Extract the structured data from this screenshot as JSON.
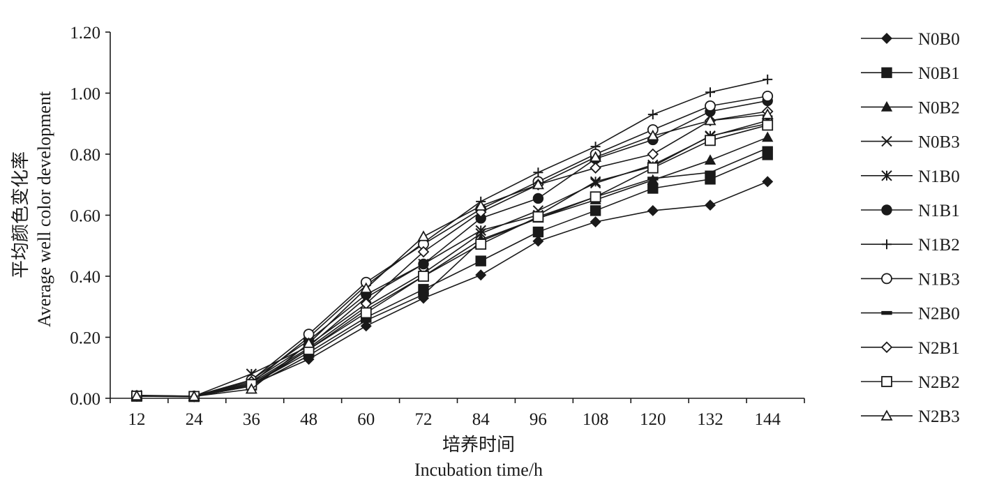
{
  "chart_data": {
    "type": "line",
    "xlabel_zh": "培养时间",
    "xlabel_en": "Incubation time/h",
    "ylabel_zh": "平均颜色变化率",
    "ylabel_en": "Average well color development",
    "x": [
      12,
      24,
      36,
      48,
      60,
      72,
      84,
      96,
      108,
      120,
      132,
      144
    ],
    "x_tick_labels": [
      "12",
      "24",
      "36",
      "48",
      "60",
      "72",
      "84",
      "96",
      "108",
      "120",
      "132",
      "144"
    ],
    "y_tick_labels": [
      "0.00",
      "0.20",
      "0.40",
      "0.60",
      "0.80",
      "1.00",
      "1.20"
    ],
    "y_ticks": [
      0,
      0.2,
      0.4,
      0.6,
      0.8,
      1.0,
      1.2
    ],
    "ylim": [
      0,
      1.2
    ],
    "grid": false,
    "legend_position": "right",
    "series": [
      {
        "name": "N0B0",
        "marker": "diamond-filled",
        "values": [
          0.007,
          0.005,
          0.045,
          0.128,
          0.237,
          0.328,
          0.404,
          0.515,
          0.578,
          0.615,
          0.633,
          0.71
        ]
      },
      {
        "name": "N0B1",
        "marker": "square-filled",
        "values": [
          0.007,
          0.006,
          0.045,
          0.15,
          0.265,
          0.357,
          0.45,
          0.545,
          0.615,
          0.688,
          0.718,
          0.798
        ]
      },
      {
        "name": "N0B2",
        "marker": "triangle-filled",
        "values": [
          0.008,
          0.006,
          0.04,
          0.16,
          0.29,
          0.4,
          0.52,
          0.59,
          0.65,
          0.715,
          0.78,
          0.855
        ]
      },
      {
        "name": "N0B3",
        "marker": "x",
        "values": [
          0.008,
          0.006,
          0.05,
          0.165,
          0.3,
          0.41,
          0.54,
          0.615,
          0.705,
          0.765,
          0.858,
          0.91
        ]
      },
      {
        "name": "N1B0",
        "marker": "asterisk",
        "values": [
          0.01,
          0.007,
          0.08,
          0.17,
          0.33,
          0.44,
          0.55,
          0.6,
          0.71,
          0.76,
          0.86,
          0.9
        ]
      },
      {
        "name": "N1B1",
        "marker": "circle-filled",
        "values": [
          0.008,
          0.007,
          0.06,
          0.19,
          0.34,
          0.44,
          0.59,
          0.655,
          0.785,
          0.847,
          0.94,
          0.975
        ]
      },
      {
        "name": "N1B2",
        "marker": "plus",
        "values": [
          0.008,
          0.007,
          0.05,
          0.2,
          0.37,
          0.51,
          0.645,
          0.74,
          0.825,
          0.93,
          1.003,
          1.045
        ]
      },
      {
        "name": "N1B3",
        "marker": "circle-open",
        "values": [
          0.008,
          0.007,
          0.06,
          0.21,
          0.38,
          0.505,
          0.62,
          0.71,
          0.8,
          0.88,
          0.958,
          0.99
        ]
      },
      {
        "name": "N2B0",
        "marker": "dash",
        "values": [
          0.007,
          0.006,
          0.04,
          0.14,
          0.255,
          0.34,
          0.515,
          0.59,
          0.66,
          0.72,
          0.74,
          0.82
        ]
      },
      {
        "name": "N2B1",
        "marker": "diamond-open",
        "values": [
          0.007,
          0.006,
          0.055,
          0.175,
          0.31,
          0.48,
          0.61,
          0.7,
          0.755,
          0.8,
          0.91,
          0.94
        ]
      },
      {
        "name": "N2B2",
        "marker": "square-open",
        "values": [
          0.007,
          0.006,
          0.045,
          0.16,
          0.28,
          0.4,
          0.505,
          0.595,
          0.66,
          0.755,
          0.845,
          0.895
        ]
      },
      {
        "name": "N2B3",
        "marker": "triangle-open",
        "values": [
          0.008,
          0.006,
          0.03,
          0.18,
          0.36,
          0.53,
          0.63,
          0.7,
          0.79,
          0.86,
          0.91,
          0.93
        ]
      }
    ]
  }
}
